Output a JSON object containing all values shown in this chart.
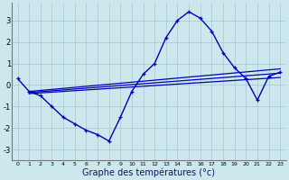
{
  "xlabel": "Graphe des températures (°c)",
  "background_color": "#cce8ed",
  "grid_color": "#aacdd4",
  "line_color": "#0000bb",
  "x_hours": [
    0,
    1,
    2,
    3,
    4,
    5,
    6,
    7,
    8,
    9,
    10,
    11,
    12,
    13,
    14,
    15,
    16,
    17,
    18,
    19,
    20,
    21,
    22,
    23
  ],
  "temp_main": [
    0.3,
    -0.3,
    -0.5,
    -1.0,
    -1.5,
    -1.8,
    -2.1,
    -2.3,
    -2.6,
    -1.5,
    -0.3,
    0.5,
    1.0,
    2.2,
    3.0,
    3.4,
    3.1,
    2.5,
    1.5,
    0.8,
    0.3,
    -0.7,
    0.4,
    0.6
  ],
  "line1_start": -0.3,
  "line1_end": 0.75,
  "line2_start": -0.35,
  "line2_end": 0.55,
  "line3_start": -0.4,
  "line3_end": 0.35,
  "ylim": [
    -3.5,
    3.8
  ],
  "yticks": [
    -3,
    -2,
    -1,
    0,
    1,
    2,
    3
  ],
  "xlim": [
    -0.5,
    23.5
  ],
  "xtick_labels": [
    "0",
    "1",
    "2",
    "3",
    "4",
    "5",
    "6",
    "7",
    "8",
    "9",
    "10",
    "11",
    "12",
    "13",
    "14",
    "15",
    "16",
    "17",
    "18",
    "19",
    "20",
    "21",
    "22",
    "23"
  ],
  "xlabel_fontsize": 7,
  "ytick_fontsize": 6,
  "xtick_fontsize": 4.5,
  "linewidth_main": 1.0,
  "linewidth_trend": 0.9,
  "marker_size": 3.5
}
